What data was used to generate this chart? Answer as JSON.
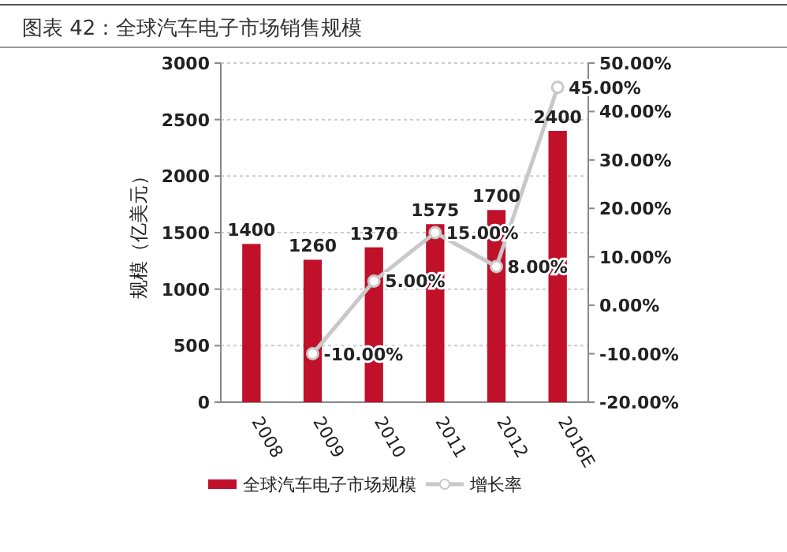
{
  "chart_data": {
    "type": "bar",
    "title": "图表 42：全球汽车电子市场销售规模",
    "ylabel": "规模（亿美元）",
    "categories": [
      "2008",
      "2009",
      "2010",
      "2011",
      "2012",
      "2016E"
    ],
    "series": [
      {
        "name": "全球汽车电子市场规模",
        "color": "#c0102a",
        "values": [
          1400,
          1260,
          1370,
          1575,
          1700,
          2400
        ],
        "value_labels": [
          "1400",
          "1260",
          "1370",
          "1575",
          "1700",
          "2400"
        ]
      },
      {
        "name": "增长率",
        "type": "line",
        "axis": "y2",
        "color": "#c8c8c8",
        "marker": "circle",
        "values": [
          null,
          -10,
          5,
          15,
          8,
          45
        ],
        "value_labels": [
          null,
          "-10.00%",
          "5.00%",
          "15.00%",
          "8.00%",
          "45.00%"
        ]
      }
    ],
    "ylim": [
      0,
      3000
    ],
    "yticks": [
      0,
      500,
      1000,
      1500,
      2000,
      2500,
      3000
    ],
    "y2lim": [
      -20,
      50
    ],
    "y2ticks": [
      {
        "value": -20,
        "label": "-20.00%"
      },
      {
        "value": -10,
        "label": "-10.00%"
      },
      {
        "value": 0,
        "label": "0.00%"
      },
      {
        "value": 10,
        "label": "10.00%"
      },
      {
        "value": 20,
        "label": "20.00%"
      },
      {
        "value": 30,
        "label": "30.00%"
      },
      {
        "value": 40,
        "label": "40.00%"
      },
      {
        "value": 50,
        "label": "50.00%"
      }
    ],
    "grid": "y",
    "legend": "bottom"
  }
}
